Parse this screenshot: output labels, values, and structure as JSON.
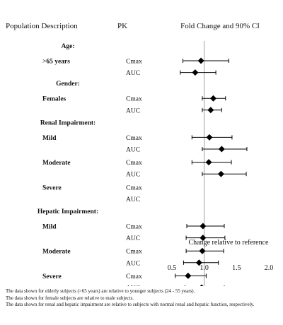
{
  "headers": {
    "population": "Population Description",
    "pk": "PK",
    "fold": "Fold Change and 90% CI"
  },
  "colors": {
    "text": "#111111",
    "marker": "#000000",
    "refline": "#888888",
    "background": "#ffffff"
  },
  "chart_data": {
    "type": "forest",
    "title": "Fold Change and 90% CI",
    "xlabel": "Change relative to reference",
    "xlim": [
      0.5,
      2.0
    ],
    "xticks": [
      "0.5",
      "1.0",
      "1.5",
      "2.0"
    ],
    "reference_value": 1.0,
    "groups": [
      {
        "category": "Age:",
        "label": ">65 years",
        "metrics": [
          {
            "pk": "Cmax",
            "value": 0.95,
            "lo": 0.67,
            "hi": 1.38
          },
          {
            "pk": "AUC",
            "value": 0.86,
            "lo": 0.63,
            "hi": 1.18
          }
        ]
      },
      {
        "category": "Gender:",
        "label": "Females",
        "metrics": [
          {
            "pk": "Cmax",
            "value": 1.14,
            "lo": 0.97,
            "hi": 1.33
          },
          {
            "pk": "AUC",
            "value": 1.1,
            "lo": 0.97,
            "hi": 1.27
          }
        ]
      },
      {
        "category": "Renal Impairment:",
        "label": "Mild",
        "metrics": [
          {
            "pk": "Cmax",
            "value": 1.08,
            "lo": 0.81,
            "hi": 1.43
          },
          {
            "pk": "AUC",
            "value": 1.27,
            "lo": 0.97,
            "hi": 1.66
          }
        ]
      },
      {
        "category": "",
        "label": "Moderate",
        "metrics": [
          {
            "pk": "Cmax",
            "value": 1.07,
            "lo": 0.81,
            "hi": 1.42
          },
          {
            "pk": "AUC",
            "value": 1.26,
            "lo": 0.97,
            "hi": 1.65
          }
        ]
      },
      {
        "category": "",
        "label": "Severe",
        "metrics": [
          {
            "pk": "Cmax"
          },
          {
            "pk": "AUC"
          }
        ]
      },
      {
        "category": "Hepatic Impairment:",
        "label": "Mild",
        "metrics": [
          {
            "pk": "Cmax",
            "value": 0.98,
            "lo": 0.73,
            "hi": 1.31
          },
          {
            "pk": "AUC",
            "value": 0.98,
            "lo": 0.72,
            "hi": 1.32
          }
        ]
      },
      {
        "category": "",
        "label": "Moderate",
        "metrics": [
          {
            "pk": "Cmax",
            "value": 0.97,
            "lo": 0.72,
            "hi": 1.3
          },
          {
            "pk": "AUC",
            "value": 0.92,
            "lo": 0.68,
            "hi": 1.22
          }
        ]
      },
      {
        "category": "",
        "label": "Severe",
        "metrics": [
          {
            "pk": "Cmax",
            "value": 0.75,
            "lo": 0.55,
            "hi": 1.03
          },
          {
            "pk": "AUC",
            "value": 0.96,
            "lo": 0.7,
            "hi": 1.31
          }
        ]
      }
    ]
  },
  "footnotes": [
    "The data shown for elderly subjects (>65 years) are relative to younger subjects (24 - 55 years).",
    "The data shown for female subjects are relative to male subjects.",
    "The data shown for renal and hepatic impairment are relative to subjects with normal renal and hepatic function, respectively."
  ]
}
